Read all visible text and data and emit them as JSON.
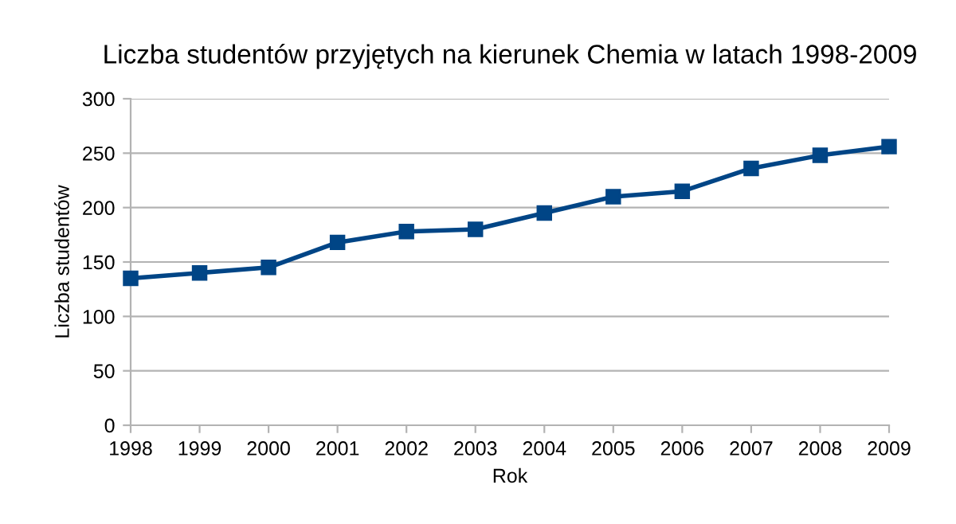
{
  "chart_data": {
    "type": "line",
    "title": "Liczba studentów przyjętych na kierunek Chemia w latach 1998-2009",
    "xlabel": "Rok",
    "ylabel": "Liczba studentów",
    "x": [
      1998,
      1999,
      2000,
      2001,
      2002,
      2003,
      2004,
      2005,
      2006,
      2007,
      2008,
      2009
    ],
    "series": [
      {
        "color": "#004586",
        "values": [
          135,
          140,
          145,
          168,
          178,
          180,
          195,
          210,
          215,
          236,
          248,
          256
        ]
      }
    ],
    "xlim": [
      1998,
      2009
    ],
    "xticks": [
      1998,
      1999,
      2000,
      2001,
      2002,
      2003,
      2004,
      2005,
      2006,
      2007,
      2008,
      2009
    ],
    "ylim": [
      0,
      300
    ],
    "yticks": [
      0,
      50,
      100,
      150,
      200,
      250,
      300
    ],
    "grid": "y",
    "marker": "square",
    "line_style": "solid"
  }
}
